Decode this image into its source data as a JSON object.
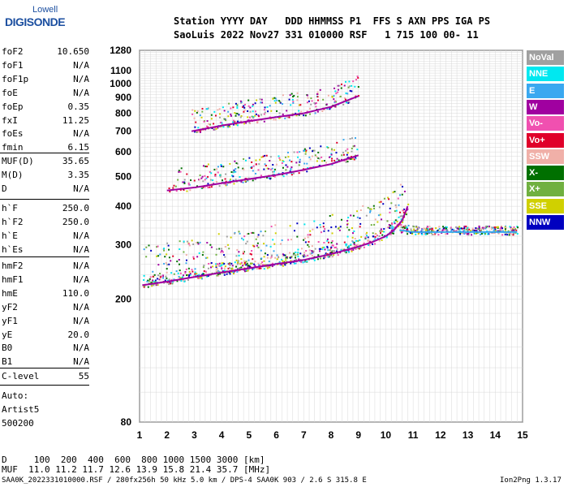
{
  "logo": {
    "line1": "Lowell",
    "line2": "DIGISONDE"
  },
  "header": {
    "line1": "Station YYYY DAY   DDD HHMMSS P1  FFS S AXN PPS IGA PS",
    "line2": "SaoLuis 2022 Nov27 331 010000 RSF   1 715 100 00- 11"
  },
  "params_a": [
    {
      "label": "foF2",
      "value": "10.650"
    },
    {
      "label": "foF1",
      "value": "N/A"
    },
    {
      "label": "foF1p",
      "value": "N/A"
    },
    {
      "label": "foE",
      "value": "N/A"
    },
    {
      "label": "foEp",
      "value": "0.35"
    },
    {
      "label": "fxI",
      "value": "11.25"
    },
    {
      "label": "foEs",
      "value": "N/A"
    },
    {
      "label": "fmin",
      "value": "6.15"
    }
  ],
  "params_b": [
    {
      "label": "MUF(D)",
      "value": "35.65"
    },
    {
      "label": "M(D)",
      "value": "3.35"
    },
    {
      "label": "D",
      "value": "N/A"
    }
  ],
  "params_c": [
    {
      "label": "h`F",
      "value": "250.0"
    },
    {
      "label": "h`F2",
      "value": "250.0"
    },
    {
      "label": "h`E",
      "value": "N/A"
    },
    {
      "label": "h`Es",
      "value": "N/A"
    }
  ],
  "params_d": [
    {
      "label": "hmF2",
      "value": "N/A"
    },
    {
      "label": "hmF1",
      "value": "N/A"
    },
    {
      "label": "hmE",
      "value": "110.0"
    },
    {
      "label": "yF2",
      "value": "N/A"
    },
    {
      "label": "yF1",
      "value": "N/A"
    },
    {
      "label": "yE",
      "value": "20.0"
    },
    {
      "label": "B0",
      "value": "N/A"
    },
    {
      "label": "B1",
      "value": "N/A"
    }
  ],
  "params_e": [
    {
      "label": "C-level",
      "value": "55"
    }
  ],
  "auto": [
    "Auto:",
    "Artist5",
    "500200"
  ],
  "legend": [
    {
      "label": "NoVal",
      "bg": "#a0a0a0",
      "fg": "#ffffff"
    },
    {
      "label": "NNE",
      "bg": "#00e8f0",
      "fg": "#ffffff"
    },
    {
      "label": "E",
      "bg": "#3aa8f0",
      "fg": "#ffffff"
    },
    {
      "label": "W",
      "bg": "#a000a0",
      "fg": "#ffffff"
    },
    {
      "label": "Vo-",
      "bg": "#f050b0",
      "fg": "#ffffff"
    },
    {
      "label": "Vo+",
      "bg": "#e0002a",
      "fg": "#ffffff"
    },
    {
      "label": "SSW",
      "bg": "#f0b0a8",
      "fg": "#ffffff"
    },
    {
      "label": "X-",
      "bg": "#007000",
      "fg": "#ffffff"
    },
    {
      "label": "X+",
      "bg": "#70b040",
      "fg": "#ffffff"
    },
    {
      "label": "SSE",
      "bg": "#d0d000",
      "fg": "#ffffff"
    },
    {
      "label": "NNW",
      "bg": "#0000c0",
      "fg": "#ffffff"
    }
  ],
  "footer": {
    "line1": "D     100  200  400  600  800 1000 1500 3000 [km]",
    "line2": "MUF  11.0 11.2 11.7 12.6 13.9 15.8 21.4 35.7 [MHz]",
    "file": "SAA0K_2022331010000.RSF / 280fx256h 50 kHz 5.0 km / DPS-4 SAA0K 903 / 2.6 S 315.8 E",
    "version": "Ion2Png 1.3.17"
  },
  "chart_data": {
    "type": "scatter",
    "title": "",
    "xlabel": "",
    "ylabel": "",
    "xlim": [
      1,
      15
    ],
    "ylim": [
      80,
      1280
    ],
    "y_scale": "log",
    "x_ticks": [
      1,
      2,
      3,
      4,
      5,
      6,
      7,
      8,
      9,
      10,
      11,
      12,
      13,
      14,
      15
    ],
    "y_ticks": [
      80,
      200,
      300,
      400,
      500,
      600,
      700,
      800,
      900,
      1000,
      1100,
      1280
    ],
    "grid": true,
    "traces": [
      {
        "name": "F trace",
        "x": [
          1.1,
          2.0,
          3.0,
          4.0,
          5.0,
          6.0,
          7.0,
          8.0,
          9.0,
          9.5,
          10.0,
          10.3,
          10.6,
          10.8
        ],
        "y": [
          222,
          228,
          236,
          244,
          252,
          260,
          268,
          280,
          296,
          306,
          320,
          335,
          360,
          400
        ]
      },
      {
        "name": "2F trace",
        "x": [
          2.0,
          3.0,
          4.0,
          5.0,
          6.0,
          7.0,
          8.0,
          9.0
        ],
        "y": [
          450,
          460,
          475,
          490,
          505,
          525,
          548,
          585
        ]
      },
      {
        "name": "3F trace",
        "x": [
          2.9,
          4.0,
          5.0,
          6.0,
          7.0,
          8.0,
          9.0
        ],
        "y": [
          700,
          730,
          755,
          778,
          800,
          840,
          910
        ]
      },
      {
        "name": "sporadic layer",
        "x": [
          10.5,
          11.0,
          12.0,
          13.0,
          14.0,
          14.8
        ],
        "y": [
          335,
          330,
          330,
          330,
          330,
          330
        ]
      }
    ]
  }
}
